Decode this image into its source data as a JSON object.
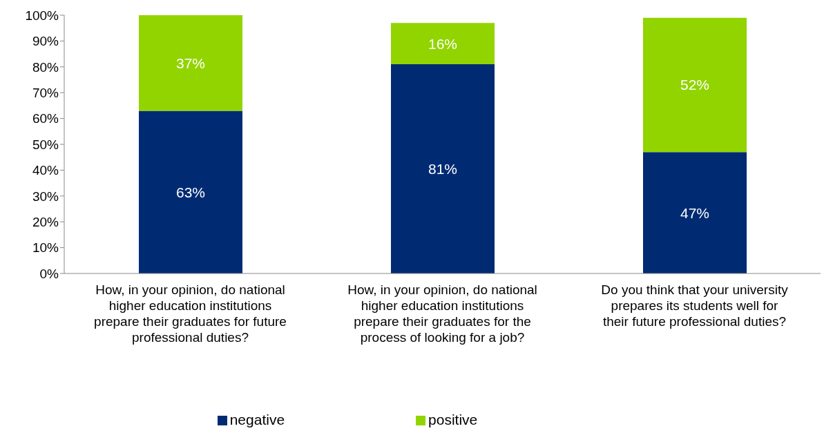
{
  "chart_data": {
    "type": "bar",
    "stacked": true,
    "categories": [
      "How, in your opinion, do national higher education institutions prepare their graduates for future professional duties?",
      "How, in your opinion, do national higher education institutions prepare their graduates for the process of looking for a job?",
      "Do you think that your university prepares its students well for their future professional duties?"
    ],
    "series": [
      {
        "name": "negative",
        "color": "#002b73",
        "values": [
          63,
          81,
          47
        ],
        "value_labels": [
          "63%",
          "81%",
          "47%"
        ]
      },
      {
        "name": "positive",
        "color": "#92d400",
        "values": [
          37,
          16,
          52
        ],
        "value_labels": [
          "37%",
          "16%",
          "52%"
        ]
      }
    ],
    "ylim": [
      0,
      100
    ],
    "yticks": [
      {
        "value": 0,
        "label": "0%"
      },
      {
        "value": 10,
        "label": "10%"
      },
      {
        "value": 20,
        "label": "20%"
      },
      {
        "value": 30,
        "label": "30%"
      },
      {
        "value": 40,
        "label": "40%"
      },
      {
        "value": 50,
        "label": "50%"
      },
      {
        "value": 60,
        "label": "60%"
      },
      {
        "value": 70,
        "label": "70%"
      },
      {
        "value": 80,
        "label": "80%"
      },
      {
        "value": 90,
        "label": "90%"
      },
      {
        "value": 100,
        "label": "100%"
      }
    ],
    "legend": "bottom"
  }
}
